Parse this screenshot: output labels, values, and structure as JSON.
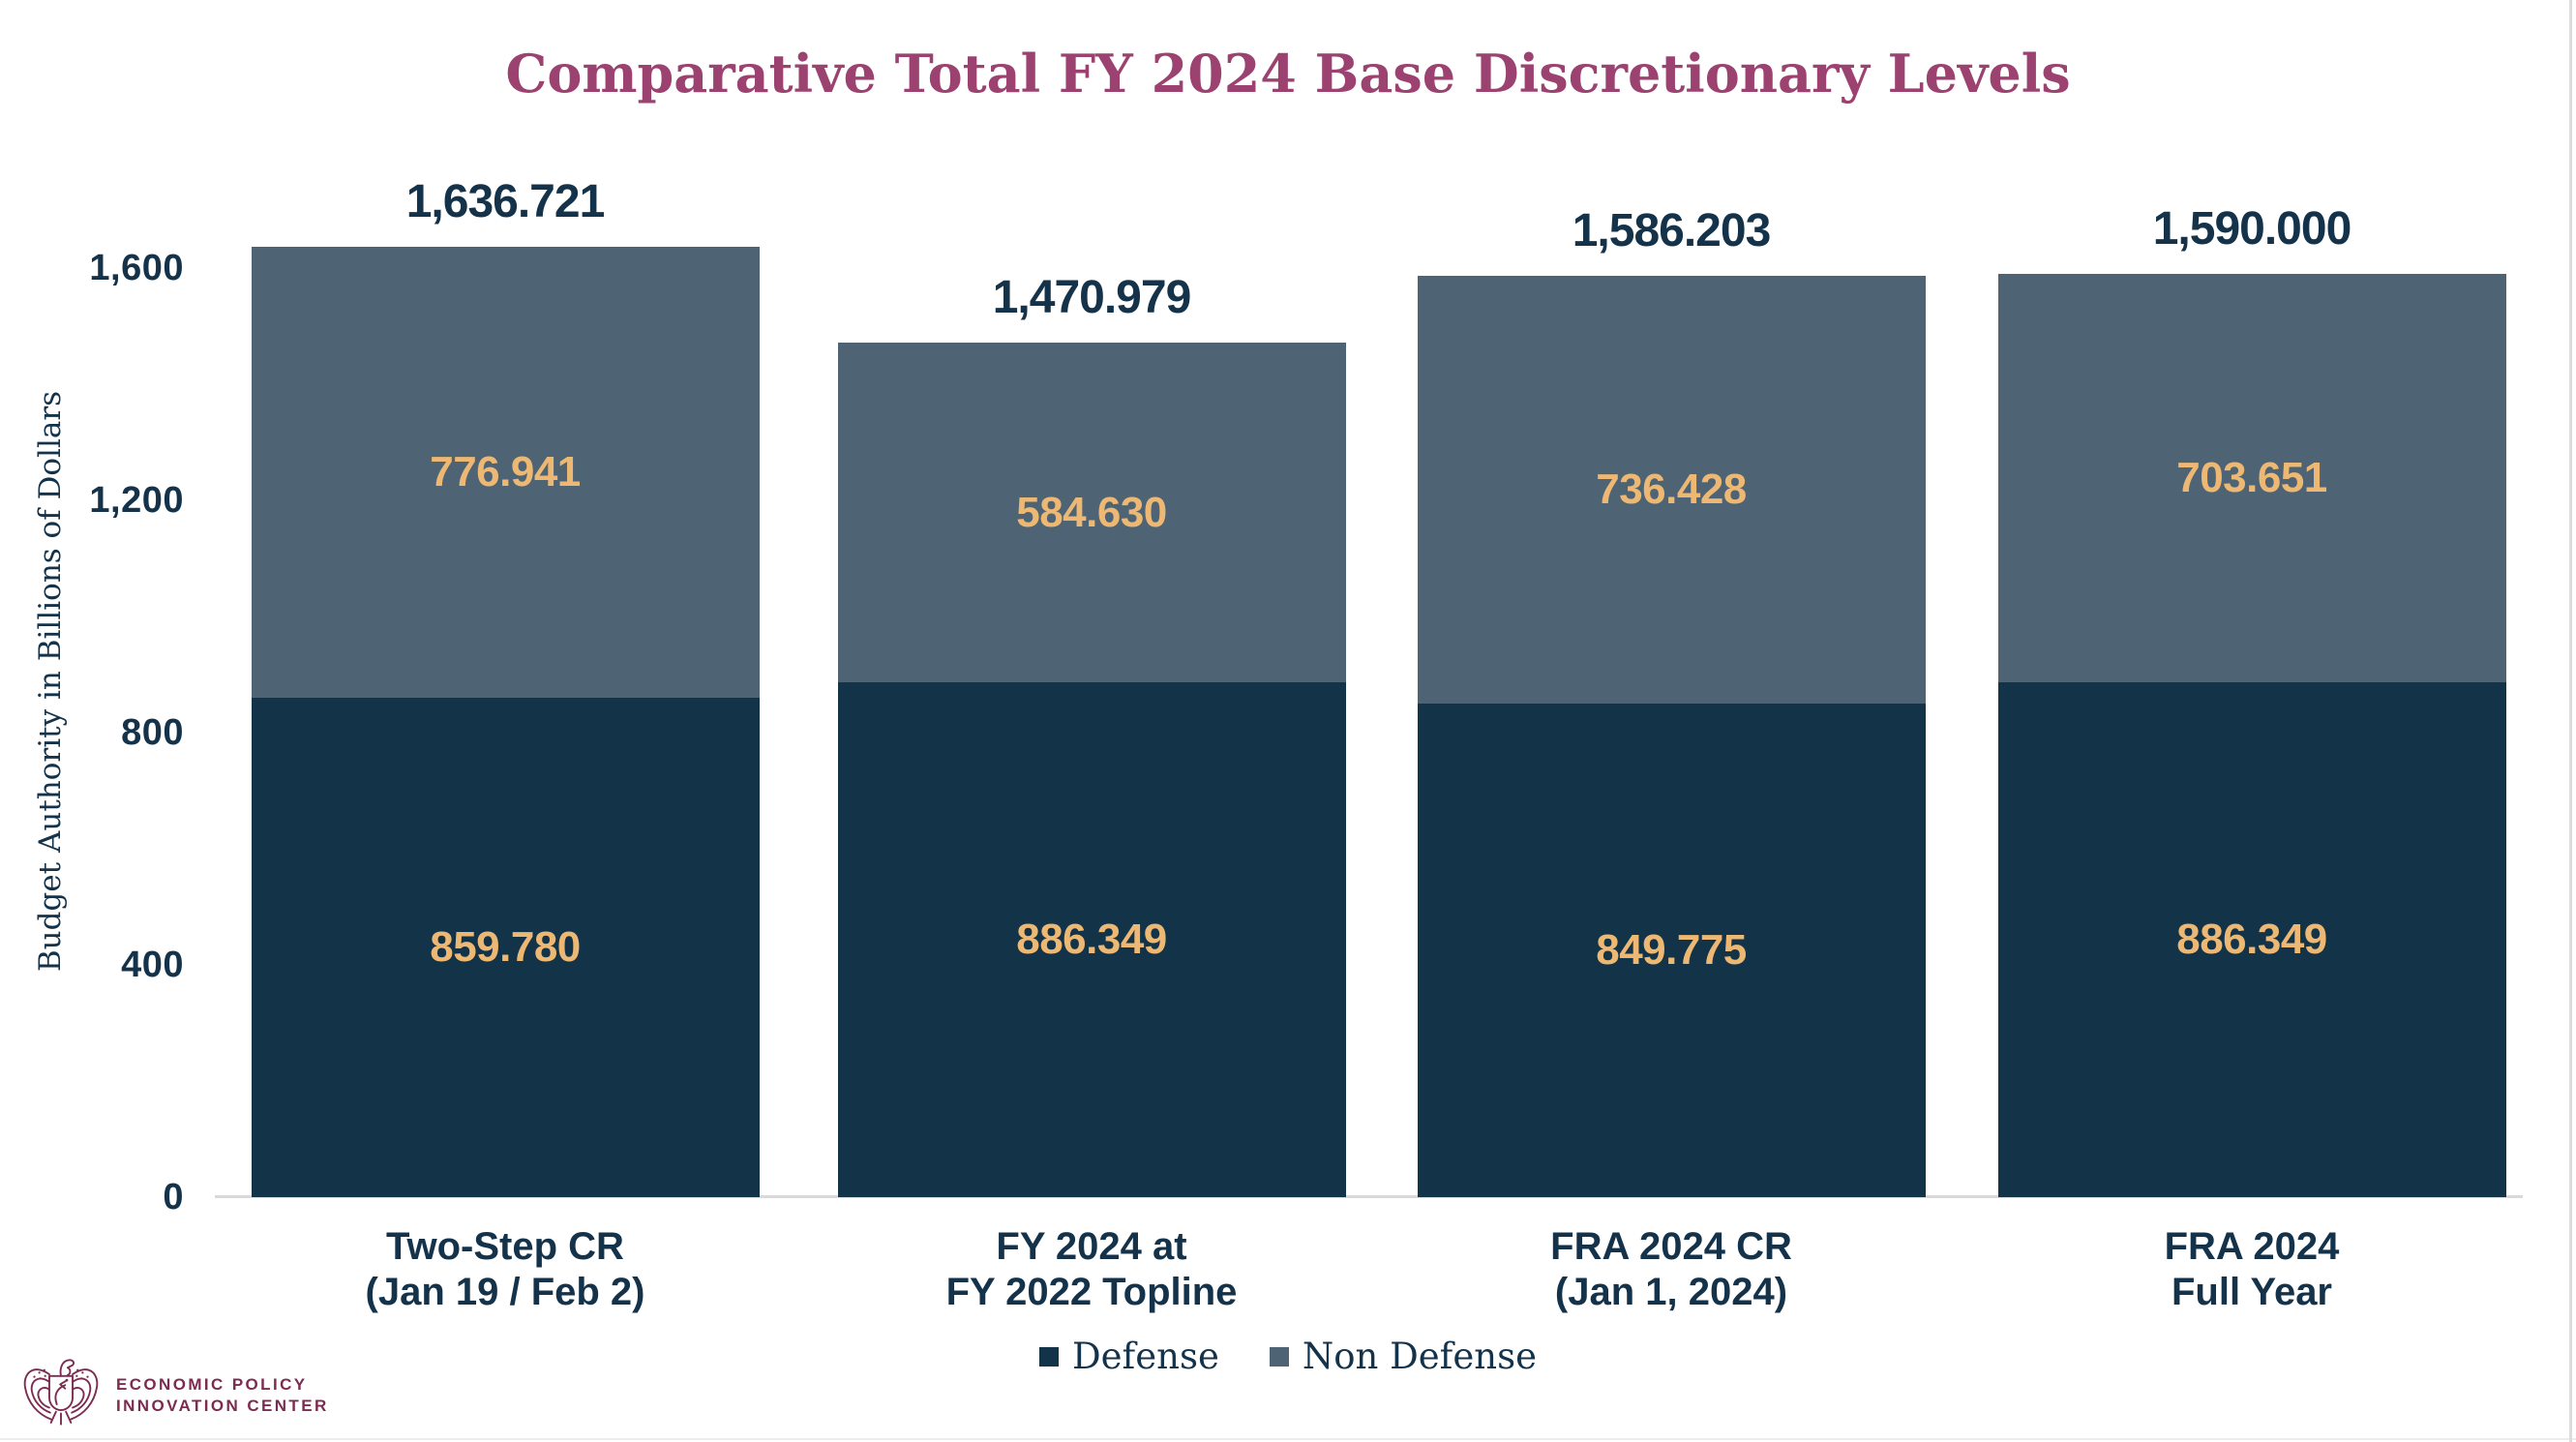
{
  "colors": {
    "navy": "#133349",
    "slate": "#4E6474",
    "gold": "#ECB873",
    "plum": "#9C4270",
    "maroon": "#7D2B50",
    "text_navy": "#14334B",
    "baseline_gray": "#D9D9D9"
  },
  "chart_data": {
    "type": "bar",
    "stacked": true,
    "title": "Comparative Total FY 2024 Base Discretionary Levels",
    "xlabel": "",
    "ylabel": "Budget Authority in Billions of Dollars",
    "ylim": [
      0,
      1600
    ],
    "grid": false,
    "legend_position": "bottom",
    "yticks": [
      {
        "value": 0,
        "label": "0"
      },
      {
        "value": 400,
        "label": "400"
      },
      {
        "value": 800,
        "label": "800"
      },
      {
        "value": 1200,
        "label": "1,200"
      },
      {
        "value": 1600,
        "label": "1,600"
      }
    ],
    "categories": [
      [
        "Two-Step CR",
        "(Jan 19 / Feb 2)"
      ],
      [
        "FY 2024 at",
        "FY 2022 Topline"
      ],
      [
        "FRA 2024 CR",
        "(Jan 1, 2024)"
      ],
      [
        "FRA 2024",
        "Full Year"
      ]
    ],
    "series": [
      {
        "name": "Defense",
        "color": "#133349",
        "values": [
          859.78,
          886.349,
          849.775,
          886.349
        ],
        "labels": [
          "859.780",
          "886.349",
          "849.775",
          "886.349"
        ]
      },
      {
        "name": "Non Defense",
        "color": "#4E6474",
        "values": [
          776.941,
          584.63,
          736.428,
          703.651
        ],
        "labels": [
          "776.941",
          "584.630",
          "736.428",
          "703.651"
        ]
      }
    ],
    "totals": [
      1636.721,
      1470.979,
      1586.203,
      1590.0
    ],
    "total_labels": [
      "1,636.721",
      "1,470.979",
      "1,586.203",
      "1,590.000"
    ]
  },
  "footer": {
    "logo_line1": "ECONOMIC POLICY",
    "logo_line2": "INNOVATION CENTER"
  }
}
